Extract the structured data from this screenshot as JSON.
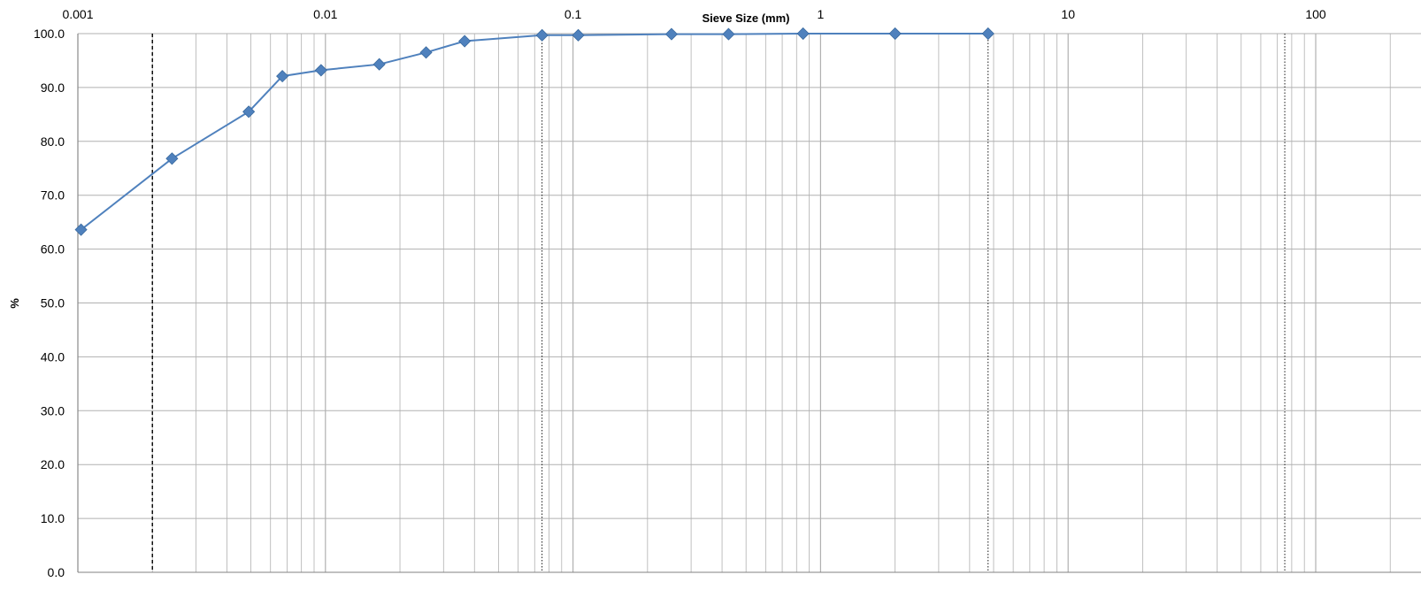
{
  "chart_data": {
    "type": "line",
    "xlabel": "Sieve Size (mm)",
    "ylabel": "%",
    "x_scale": "log",
    "xlim": [
      0.001,
      300
    ],
    "ylim": [
      0,
      100
    ],
    "x_ticks": [
      "0.001",
      "0.01",
      "0.1",
      "1",
      "10",
      "100"
    ],
    "y_ticks": [
      "0.0",
      "10.0",
      "20.0",
      "30.0",
      "40.0",
      "50.0",
      "60.0",
      "70.0",
      "80.0",
      "90.0",
      "100.0"
    ],
    "grid": true,
    "colors": {
      "series": "#4f81bd",
      "marker": "#4f81bd",
      "grid": "#b0b0b0",
      "reference": "#000000"
    },
    "series": [
      {
        "x": [
          0.00103,
          0.0024,
          0.0049,
          0.0067,
          0.0096,
          0.0165,
          0.0255,
          0.0365,
          0.075,
          0.105,
          0.25,
          0.425,
          0.85,
          2.0,
          4.75
        ],
        "values": [
          63.6,
          76.8,
          85.5,
          92.1,
          93.2,
          94.3,
          96.5,
          98.6,
          99.7,
          99.7,
          99.9,
          99.9,
          100.0,
          100.0,
          100.0
        ]
      }
    ],
    "reference_lines": [
      {
        "x": 0.002,
        "style": "dashed"
      },
      {
        "x": 0.075,
        "style": "dotted"
      },
      {
        "x": 4.75,
        "style": "dotted"
      },
      {
        "x": 75,
        "style": "dotted"
      }
    ]
  }
}
